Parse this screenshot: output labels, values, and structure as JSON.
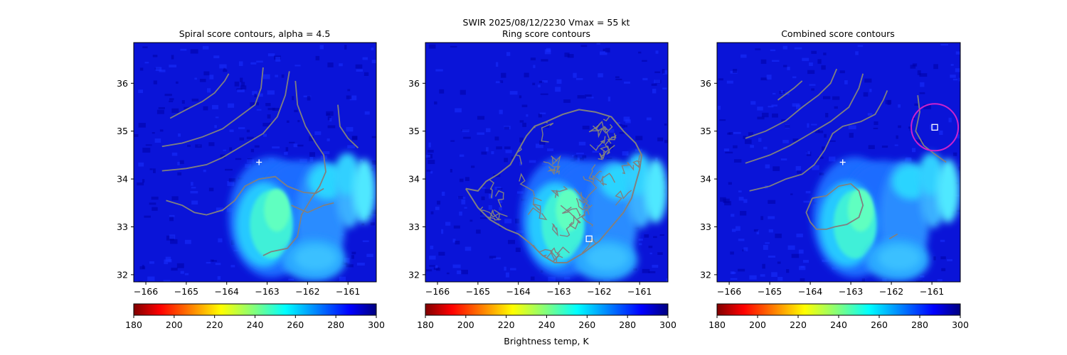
{
  "suptitle": "SWIR  2025/08/12/2230    Vmax = 55 kt",
  "chart_data": [
    {
      "type": "heatmap",
      "title": "Spiral score contours, alpha =  4.5",
      "xlim": [
        -166.3,
        -160.3
      ],
      "ylim": [
        31.85,
        36.85
      ],
      "xticks": [
        "−166",
        "−165",
        "−164",
        "−163",
        "−162",
        "−161"
      ],
      "xtick_values": [
        -166,
        -165,
        -164,
        -163,
        -162,
        -161
      ],
      "yticks": [
        "32",
        "33",
        "34",
        "35",
        "36"
      ],
      "ytick_values": [
        32,
        33,
        34,
        35,
        36
      ],
      "contour_color": "#808080",
      "contours": [
        [
          [
            -165.4,
            35.27
          ],
          [
            -165.0,
            35.45
          ],
          [
            -164.6,
            35.62
          ],
          [
            -164.3,
            35.8
          ],
          [
            -164.05,
            36.05
          ],
          [
            -163.95,
            36.2
          ]
        ],
        [
          [
            -165.6,
            34.68
          ],
          [
            -165.1,
            34.75
          ],
          [
            -164.6,
            34.88
          ],
          [
            -164.1,
            35.05
          ],
          [
            -163.7,
            35.3
          ],
          [
            -163.3,
            35.55
          ],
          [
            -163.15,
            35.9
          ],
          [
            -163.1,
            36.33
          ]
        ],
        [
          [
            -165.6,
            34.17
          ],
          [
            -165.0,
            34.22
          ],
          [
            -164.5,
            34.3
          ],
          [
            -164.1,
            34.45
          ],
          [
            -163.6,
            34.7
          ],
          [
            -163.1,
            34.95
          ],
          [
            -162.75,
            35.3
          ],
          [
            -162.55,
            35.75
          ],
          [
            -162.45,
            36.25
          ]
        ],
        [
          [
            -162.3,
            36.05
          ],
          [
            -162.25,
            35.55
          ],
          [
            -162.05,
            35.1
          ],
          [
            -161.8,
            34.75
          ],
          [
            -161.6,
            34.5
          ],
          [
            -161.55,
            34.15
          ],
          [
            -161.7,
            33.85
          ],
          [
            -161.9,
            33.6
          ],
          [
            -162.15,
            33.25
          ],
          [
            -162.25,
            32.8
          ],
          [
            -162.5,
            32.55
          ],
          [
            -162.9,
            32.48
          ],
          [
            -163.1,
            32.4
          ]
        ],
        [
          [
            -165.5,
            33.55
          ],
          [
            -165.1,
            33.45
          ],
          [
            -164.8,
            33.3
          ],
          [
            -164.5,
            33.25
          ],
          [
            -164.1,
            33.35
          ],
          [
            -163.8,
            33.55
          ],
          [
            -163.55,
            33.85
          ],
          [
            -163.2,
            34.0
          ],
          [
            -162.8,
            34.05
          ],
          [
            -162.5,
            33.85
          ],
          [
            -162.1,
            33.72
          ],
          [
            -161.8,
            33.7
          ],
          [
            -161.6,
            33.8
          ]
        ],
        [
          [
            -162.4,
            33.45
          ],
          [
            -162.0,
            33.3
          ],
          [
            -161.6,
            33.45
          ],
          [
            -161.35,
            33.5
          ]
        ],
        [
          [
            -161.25,
            35.55
          ],
          [
            -161.2,
            35.1
          ],
          [
            -161.0,
            34.85
          ],
          [
            -160.75,
            34.65
          ]
        ]
      ],
      "markers": [
        {
          "type": "plus",
          "x": -163.2,
          "y": 34.35,
          "color": "#ffffff"
        }
      ],
      "colorbar": {
        "vmin": 180,
        "vmax": 300,
        "ticks": [
          "180",
          "200",
          "220",
          "240",
          "260",
          "280",
          "300"
        ],
        "tick_values": [
          180,
          200,
          220,
          240,
          260,
          280,
          300
        ],
        "label": ""
      }
    },
    {
      "type": "heatmap",
      "title": "Ring score contours",
      "xlim": [
        -166.3,
        -160.3
      ],
      "ylim": [
        31.85,
        36.85
      ],
      "xticks": [
        "−166",
        "−165",
        "−164",
        "−163",
        "−162",
        "−161"
      ],
      "xtick_values": [
        -166,
        -165,
        -164,
        -163,
        -162,
        -161
      ],
      "yticks": [
        "32",
        "33",
        "34",
        "35",
        "36"
      ],
      "ytick_values": [
        32,
        33,
        34,
        35,
        36
      ],
      "contour_color": "#808080",
      "contours": [
        [
          [
            -165.3,
            33.8
          ],
          [
            -165.0,
            33.75
          ],
          [
            -164.8,
            33.95
          ],
          [
            -164.5,
            34.1
          ],
          [
            -164.2,
            34.3
          ],
          [
            -164.0,
            34.6
          ],
          [
            -163.8,
            34.9
          ],
          [
            -163.6,
            35.1
          ],
          [
            -163.3,
            35.2
          ],
          [
            -162.9,
            35.35
          ],
          [
            -162.5,
            35.45
          ],
          [
            -162.1,
            35.4
          ],
          [
            -161.7,
            35.3
          ],
          [
            -161.4,
            35.0
          ],
          [
            -161.1,
            34.75
          ],
          [
            -160.95,
            34.5
          ],
          [
            -161.0,
            34.2
          ],
          [
            -161.1,
            33.9
          ],
          [
            -161.2,
            33.6
          ],
          [
            -161.4,
            33.3
          ],
          [
            -161.7,
            33.0
          ],
          [
            -162.0,
            32.7
          ],
          [
            -162.4,
            32.45
          ],
          [
            -162.8,
            32.25
          ],
          [
            -163.1,
            32.25
          ],
          [
            -163.4,
            32.4
          ],
          [
            -163.7,
            32.65
          ],
          [
            -164.0,
            32.85
          ],
          [
            -164.3,
            32.95
          ],
          [
            -164.7,
            33.15
          ],
          [
            -165.0,
            33.4
          ],
          [
            -165.3,
            33.8
          ]
        ]
      ],
      "markers": [
        {
          "type": "square",
          "x": -162.25,
          "y": 32.75,
          "color": "#ffffff"
        }
      ],
      "colorbar": {
        "vmin": 180,
        "vmax": 300,
        "ticks": [
          "180",
          "200",
          "220",
          "240",
          "260",
          "280",
          "300"
        ],
        "tick_values": [
          180,
          200,
          220,
          240,
          260,
          280,
          300
        ],
        "label": "Brightness temp, K"
      }
    },
    {
      "type": "heatmap",
      "title": "Combined score contours",
      "xlim": [
        -166.3,
        -160.3
      ],
      "ylim": [
        31.85,
        36.85
      ],
      "xticks": [
        "−166",
        "−165",
        "−164",
        "−163",
        "−162",
        "−161"
      ],
      "xtick_values": [
        -166,
        -165,
        -164,
        -163,
        -162,
        -161
      ],
      "yticks": [
        "32",
        "33",
        "34",
        "35",
        "36"
      ],
      "ytick_values": [
        32,
        33,
        34,
        35,
        36
      ],
      "contour_color": "#808080",
      "contours": [
        [
          [
            -164.8,
            35.65
          ],
          [
            -164.4,
            35.9
          ],
          [
            -164.2,
            36.05
          ]
        ],
        [
          [
            -165.6,
            34.85
          ],
          [
            -165.1,
            35.0
          ],
          [
            -164.6,
            35.22
          ],
          [
            -164.2,
            35.5
          ],
          [
            -163.8,
            35.75
          ],
          [
            -163.5,
            36.0
          ],
          [
            -163.35,
            36.3
          ]
        ],
        [
          [
            -165.6,
            34.33
          ],
          [
            -165.0,
            34.5
          ],
          [
            -164.5,
            34.7
          ],
          [
            -164.0,
            34.95
          ],
          [
            -163.5,
            35.2
          ],
          [
            -163.05,
            35.5
          ],
          [
            -162.8,
            35.9
          ],
          [
            -162.7,
            36.2
          ]
        ],
        [
          [
            -165.5,
            33.75
          ],
          [
            -165.0,
            33.85
          ],
          [
            -164.6,
            34.0
          ],
          [
            -164.2,
            34.1
          ],
          [
            -163.9,
            34.3
          ],
          [
            -163.65,
            34.6
          ],
          [
            -163.45,
            34.95
          ],
          [
            -163.2,
            35.1
          ],
          [
            -162.75,
            35.2
          ],
          [
            -162.4,
            35.35
          ],
          [
            -162.2,
            35.65
          ],
          [
            -162.1,
            35.85
          ]
        ],
        [
          [
            -163.95,
            33.6
          ],
          [
            -163.6,
            33.65
          ],
          [
            -163.3,
            33.85
          ],
          [
            -163.0,
            33.9
          ],
          [
            -162.8,
            33.75
          ],
          [
            -162.7,
            33.45
          ],
          [
            -162.8,
            33.2
          ],
          [
            -163.1,
            33.05
          ],
          [
            -163.4,
            33.0
          ],
          [
            -163.6,
            32.95
          ],
          [
            -163.85,
            32.95
          ],
          [
            -164.0,
            33.1
          ],
          [
            -164.1,
            33.3
          ],
          [
            -163.95,
            33.6
          ]
        ],
        [
          [
            -161.35,
            35.75
          ],
          [
            -161.3,
            35.4
          ],
          [
            -161.4,
            35.0
          ],
          [
            -161.2,
            34.7
          ],
          [
            -160.9,
            34.5
          ],
          [
            -160.65,
            34.35
          ]
        ],
        [
          [
            -162.05,
            32.75
          ],
          [
            -161.85,
            32.85
          ]
        ]
      ],
      "markers": [
        {
          "type": "plus",
          "x": -163.2,
          "y": 34.35,
          "color": "#ffffff"
        },
        {
          "type": "square",
          "x": -160.93,
          "y": 35.08,
          "color": "#ffffff"
        },
        {
          "type": "circle",
          "x": -160.93,
          "y": 35.08,
          "color": "#cc22cc"
        }
      ],
      "colorbar": {
        "vmin": 180,
        "vmax": 300,
        "ticks": [
          "180",
          "200",
          "220",
          "240",
          "260",
          "280",
          "300"
        ],
        "tick_values": [
          180,
          200,
          220,
          240,
          260,
          280,
          300
        ],
        "label": ""
      }
    }
  ]
}
